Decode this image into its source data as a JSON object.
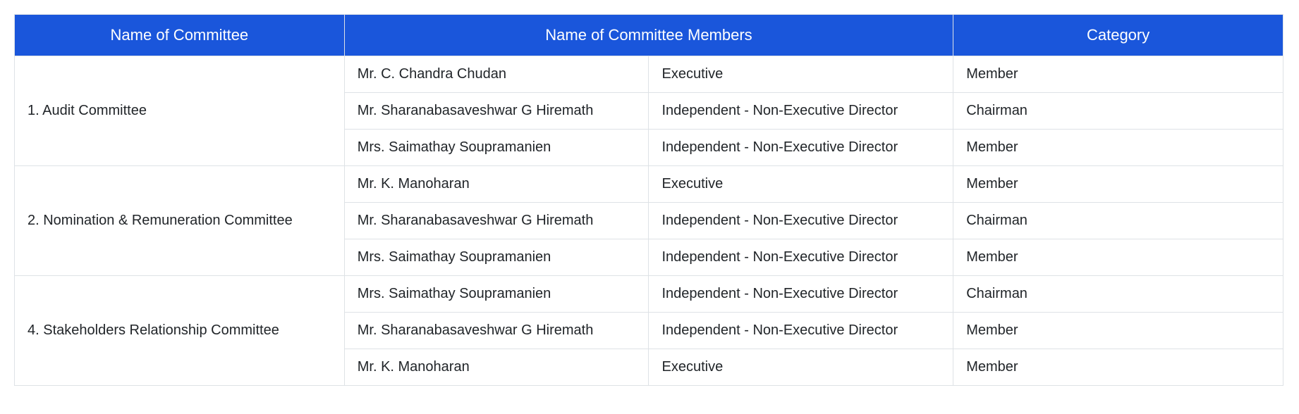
{
  "table": {
    "type": "table",
    "background_color": "#ffffff",
    "border_color": "#dee2e6",
    "cell_border_width": 1,
    "font_family": "Arial, Helvetica, sans-serif",
    "body_fontsize": 20,
    "body_text_color": "#212529",
    "header": {
      "background_color": "#1a56db",
      "text_color": "#ffffff",
      "fontsize": 22,
      "cells": [
        {
          "label": "Name of Committee",
          "colspan": 1
        },
        {
          "label": "Name of Committee Members",
          "colspan": 2
        },
        {
          "label": "Category",
          "colspan": 1
        }
      ]
    },
    "columns": [
      {
        "key": "committee",
        "width_pct": 26
      },
      {
        "key": "member",
        "width_pct": 24
      },
      {
        "key": "role",
        "width_pct": 24
      },
      {
        "key": "category",
        "width_pct": 26
      }
    ],
    "groups": [
      {
        "committee": "1. Audit Committee",
        "rows": [
          {
            "member": "Mr. C. Chandra Chudan",
            "role": "Executive",
            "category": "Member"
          },
          {
            "member": "Mr. Sharanabasaveshwar G Hiremath",
            "role": "Independent - Non-Executive Director",
            "category": "Chairman"
          },
          {
            "member": "Mrs. Saimathay Soupramanien",
            "role": "Independent - Non-Executive Director",
            "category": "Member"
          }
        ]
      },
      {
        "committee": "2. Nomination & Remuneration Committee",
        "rows": [
          {
            "member": "Mr. K. Manoharan",
            "role": "Executive",
            "category": "Member"
          },
          {
            "member": "Mr. Sharanabasaveshwar G Hiremath",
            "role": "Independent - Non-Executive Director",
            "category": "Chairman"
          },
          {
            "member": "Mrs. Saimathay Soupramanien",
            "role": "Independent - Non-Executive Director",
            "category": "Member"
          }
        ]
      },
      {
        "committee": "4. Stakeholders Relationship Committee",
        "rows": [
          {
            "member": "Mrs. Saimathay Soupramanien",
            "role": "Independent - Non-Executive Director",
            "category": "Chairman"
          },
          {
            "member": "Mr. Sharanabasaveshwar G Hiremath",
            "role": "Independent - Non-Executive Director",
            "category": "Member"
          },
          {
            "member": "Mr. K. Manoharan",
            "role": "Executive",
            "category": "Member"
          }
        ]
      }
    ]
  }
}
